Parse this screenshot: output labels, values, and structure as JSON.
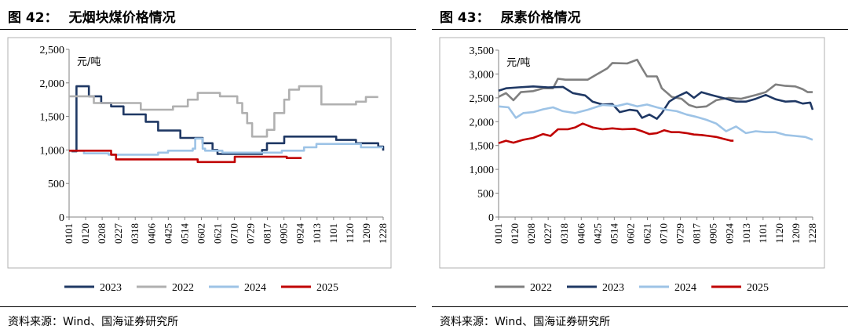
{
  "left": {
    "fig_number": "图 42：",
    "fig_title": "无烟块煤价格情况",
    "source": "资料来源：Wind、国海证券研究所",
    "chart_data": {
      "type": "line",
      "unit_label": "元/吨",
      "ylim": [
        0,
        2500
      ],
      "y_ticks": [
        "2,500",
        "2,000",
        "1,500",
        "1,000",
        "500",
        "0"
      ],
      "x_ticks": [
        "0101",
        "0120",
        "0208",
        "0227",
        "0318",
        "0406",
        "0425",
        "0514",
        "0602",
        "0621",
        "0710",
        "0729",
        "0817",
        "0905",
        "0924",
        "1013",
        "1101",
        "1120",
        "1209",
        "1228"
      ],
      "series": [
        {
          "name": "2023",
          "color": "#1f3864",
          "points": [
            [
              1,
              980
            ],
            [
              3,
              980
            ],
            [
              3,
              1950
            ],
            [
              8,
              1950
            ],
            [
              8,
              1800
            ],
            [
              13,
              1800
            ],
            [
              13,
              1700
            ],
            [
              17,
              1700
            ],
            [
              17,
              1650
            ],
            [
              22,
              1650
            ],
            [
              22,
              1530
            ],
            [
              31,
              1530
            ],
            [
              31,
              1420
            ],
            [
              36,
              1420
            ],
            [
              36,
              1290
            ],
            [
              45,
              1290
            ],
            [
              45,
              1180
            ],
            [
              54,
              1180
            ],
            [
              54,
              1100
            ],
            [
              58,
              1100
            ],
            [
              58,
              1000
            ],
            [
              60,
              1000
            ],
            [
              60,
              940
            ],
            [
              78,
              940
            ],
            [
              78,
              1000
            ],
            [
              80,
              1000
            ],
            [
              80,
              1100
            ],
            [
              87,
              1100
            ],
            [
              87,
              1200
            ],
            [
              108,
              1200
            ],
            [
              108,
              1150
            ],
            [
              116,
              1150
            ],
            [
              116,
              1100
            ],
            [
              125,
              1100
            ],
            [
              125,
              1050
            ],
            [
              127,
              1050
            ],
            [
              127,
              990
            ]
          ]
        },
        {
          "name": "2022",
          "color": "#b0b0b0",
          "points": [
            [
              0,
              1800
            ],
            [
              10,
              1800
            ],
            [
              10,
              1700
            ],
            [
              29,
              1700
            ],
            [
              29,
              1600
            ],
            [
              42,
              1600
            ],
            [
              42,
              1650
            ],
            [
              48,
              1650
            ],
            [
              48,
              1750
            ],
            [
              52,
              1750
            ],
            [
              52,
              1850
            ],
            [
              61,
              1850
            ],
            [
              61,
              1800
            ],
            [
              68,
              1800
            ],
            [
              68,
              1700
            ],
            [
              70,
              1700
            ],
            [
              70,
              1550
            ],
            [
              72,
              1550
            ],
            [
              72,
              1400
            ],
            [
              74,
              1400
            ],
            [
              74,
              1200
            ],
            [
              80,
              1200
            ],
            [
              80,
              1300
            ],
            [
              83,
              1300
            ],
            [
              83,
              1550
            ],
            [
              87,
              1550
            ],
            [
              87,
              1750
            ],
            [
              89,
              1750
            ],
            [
              89,
              1900
            ],
            [
              93,
              1900
            ],
            [
              93,
              1950
            ],
            [
              102,
              1950
            ],
            [
              102,
              1680
            ],
            [
              116,
              1680
            ],
            [
              116,
              1720
            ],
            [
              120,
              1720
            ],
            [
              120,
              1790
            ],
            [
              125,
              1790
            ]
          ]
        },
        {
          "name": "2024",
          "color": "#9dc3e6",
          "points": [
            [
              0,
              990
            ],
            [
              6,
              990
            ],
            [
              6,
              950
            ],
            [
              16,
              950
            ],
            [
              16,
              930
            ],
            [
              36,
              930
            ],
            [
              36,
              960
            ],
            [
              40,
              960
            ],
            [
              40,
              990
            ],
            [
              50,
              990
            ],
            [
              50,
              1020
            ],
            [
              51,
              1020
            ],
            [
              51,
              1170
            ],
            [
              54,
              1170
            ],
            [
              54,
              1020
            ],
            [
              55,
              1020
            ],
            [
              55,
              990
            ],
            [
              62,
              990
            ],
            [
              62,
              960
            ],
            [
              86,
              960
            ],
            [
              86,
              990
            ],
            [
              95,
              990
            ],
            [
              95,
              1040
            ],
            [
              100,
              1040
            ],
            [
              100,
              1090
            ],
            [
              118,
              1090
            ],
            [
              118,
              1040
            ],
            [
              127,
              1040
            ]
          ]
        },
        {
          "name": "2025",
          "color": "#c00000",
          "points": [
            [
              0,
              990
            ],
            [
              17,
              990
            ],
            [
              17,
              930
            ],
            [
              19,
              930
            ],
            [
              19,
              860
            ],
            [
              52,
              860
            ],
            [
              52,
              820
            ],
            [
              67,
              820
            ],
            [
              67,
              900
            ],
            [
              88,
              900
            ],
            [
              88,
              880
            ],
            [
              94,
              880
            ]
          ]
        }
      ],
      "legend_order": [
        "2023",
        "2022",
        "2024",
        "2025"
      ]
    }
  },
  "right": {
    "fig_number": "图 43：",
    "fig_title": "尿素价格情况",
    "source": "资料来源：Wind、国海证券研究所",
    "chart_data": {
      "type": "line",
      "unit_label": "元/吨",
      "ylim": [
        0,
        3500
      ],
      "y_ticks": [
        "3,500",
        "3,000",
        "2,500",
        "2,000",
        "1,500",
        "1,000",
        "500",
        "0"
      ],
      "x_ticks": [
        "0101",
        "0120",
        "0208",
        "0227",
        "0318",
        "0406",
        "0425",
        "0514",
        "0602",
        "0621",
        "0710",
        "0729",
        "0817",
        "0905",
        "0924",
        "1013",
        "1101",
        "1120",
        "1209",
        "1228"
      ],
      "series": [
        {
          "name": "2022",
          "color": "#7f7f7f",
          "points": [
            [
              0,
              2520
            ],
            [
              3,
              2600
            ],
            [
              6,
              2450
            ],
            [
              9,
              2620
            ],
            [
              14,
              2640
            ],
            [
              18,
              2700
            ],
            [
              22,
              2700
            ],
            [
              24,
              2900
            ],
            [
              27,
              2880
            ],
            [
              36,
              2880
            ],
            [
              40,
              3000
            ],
            [
              44,
              3120
            ],
            [
              46,
              3230
            ],
            [
              52,
              3220
            ],
            [
              56,
              3300
            ],
            [
              58,
              3120
            ],
            [
              60,
              2950
            ],
            [
              64,
              2950
            ],
            [
              66,
              2700
            ],
            [
              70,
              2520
            ],
            [
              74,
              2480
            ],
            [
              77,
              2350
            ],
            [
              80,
              2300
            ],
            [
              84,
              2320
            ],
            [
              88,
              2450
            ],
            [
              93,
              2500
            ],
            [
              98,
              2480
            ],
            [
              104,
              2560
            ],
            [
              108,
              2620
            ],
            [
              112,
              2780
            ],
            [
              116,
              2750
            ],
            [
              120,
              2740
            ],
            [
              123,
              2680
            ],
            [
              125,
              2620
            ],
            [
              127,
              2620
            ]
          ]
        },
        {
          "name": "2023",
          "color": "#1f3864",
          "points": [
            [
              0,
              2650
            ],
            [
              3,
              2700
            ],
            [
              8,
              2720
            ],
            [
              14,
              2740
            ],
            [
              20,
              2720
            ],
            [
              26,
              2730
            ],
            [
              30,
              2600
            ],
            [
              35,
              2550
            ],
            [
              38,
              2420
            ],
            [
              42,
              2360
            ],
            [
              46,
              2370
            ],
            [
              49,
              2200
            ],
            [
              53,
              2250
            ],
            [
              56,
              2230
            ],
            [
              58,
              2080
            ],
            [
              61,
              2150
            ],
            [
              64,
              2060
            ],
            [
              66,
              2180
            ],
            [
              69,
              2420
            ],
            [
              72,
              2520
            ],
            [
              76,
              2620
            ],
            [
              79,
              2500
            ],
            [
              82,
              2620
            ],
            [
              86,
              2560
            ],
            [
              92,
              2480
            ],
            [
              96,
              2420
            ],
            [
              100,
              2420
            ],
            [
              104,
              2480
            ],
            [
              108,
              2560
            ],
            [
              112,
              2470
            ],
            [
              116,
              2420
            ],
            [
              120,
              2430
            ],
            [
              123,
              2380
            ],
            [
              126,
              2400
            ],
            [
              127,
              2250
            ]
          ]
        },
        {
          "name": "2024",
          "color": "#9dc3e6",
          "points": [
            [
              0,
              2320
            ],
            [
              4,
              2300
            ],
            [
              7,
              2080
            ],
            [
              10,
              2180
            ],
            [
              14,
              2200
            ],
            [
              18,
              2260
            ],
            [
              22,
              2300
            ],
            [
              26,
              2220
            ],
            [
              31,
              2180
            ],
            [
              36,
              2250
            ],
            [
              42,
              2350
            ],
            [
              48,
              2330
            ],
            [
              52,
              2380
            ],
            [
              56,
              2320
            ],
            [
              60,
              2360
            ],
            [
              64,
              2300
            ],
            [
              68,
              2250
            ],
            [
              72,
              2220
            ],
            [
              76,
              2150
            ],
            [
              80,
              2100
            ],
            [
              84,
              2040
            ],
            [
              88,
              1960
            ],
            [
              92,
              1800
            ],
            [
              96,
              1900
            ],
            [
              100,
              1760
            ],
            [
              104,
              1800
            ],
            [
              108,
              1780
            ],
            [
              112,
              1780
            ],
            [
              116,
              1720
            ],
            [
              120,
              1700
            ],
            [
              124,
              1680
            ],
            [
              127,
              1620
            ]
          ]
        },
        {
          "name": "2025",
          "color": "#c00000",
          "points": [
            [
              0,
              1550
            ],
            [
              3,
              1600
            ],
            [
              6,
              1560
            ],
            [
              10,
              1620
            ],
            [
              14,
              1660
            ],
            [
              18,
              1740
            ],
            [
              21,
              1700
            ],
            [
              24,
              1840
            ],
            [
              28,
              1840
            ],
            [
              31,
              1880
            ],
            [
              34,
              1960
            ],
            [
              38,
              1880
            ],
            [
              42,
              1840
            ],
            [
              46,
              1860
            ],
            [
              50,
              1840
            ],
            [
              55,
              1850
            ],
            [
              58,
              1800
            ],
            [
              61,
              1740
            ],
            [
              64,
              1760
            ],
            [
              67,
              1820
            ],
            [
              70,
              1780
            ],
            [
              73,
              1780
            ],
            [
              76,
              1760
            ],
            [
              79,
              1730
            ],
            [
              82,
              1720
            ],
            [
              85,
              1700
            ],
            [
              88,
              1680
            ],
            [
              91,
              1640
            ],
            [
              94,
              1600
            ],
            [
              95,
              1600
            ]
          ]
        }
      ],
      "legend_order": [
        "2022",
        "2023",
        "2024",
        "2025"
      ]
    }
  }
}
